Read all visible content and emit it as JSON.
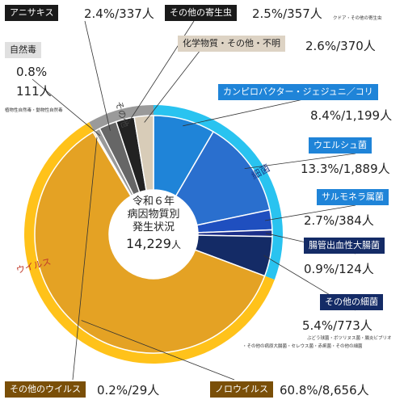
{
  "chart_data": {
    "type": "pie",
    "title": "令和６年\n病因物質別\n発生状況",
    "center_title_lines": [
      "令和６年",
      "病因物質別",
      "発生状況"
    ],
    "total": "14,229",
    "total_unit": "人",
    "slices": [
      {
        "name": "カンピロバクター・ジェジュニ／コリ",
        "percent": 8.4,
        "count": 1199,
        "label": "8.4%/1,199人",
        "group": "細菌",
        "color": "#1f84d8"
      },
      {
        "name": "ウエルシュ菌",
        "percent": 13.3,
        "count": 1889,
        "label": "13.3%/1,889人",
        "group": "細菌",
        "color": "#2a6fce"
      },
      {
        "name": "サルモネラ属菌",
        "percent": 2.7,
        "count": 384,
        "label": "2.7%/384人",
        "group": "細菌",
        "color": "#1f4fbf"
      },
      {
        "name": "腸管出血性大腸菌",
        "percent": 0.9,
        "count": 124,
        "label": "0.9%/124人",
        "group": "細菌",
        "color": "#1c2f8a"
      },
      {
        "name": "その他の細菌",
        "percent": 5.4,
        "count": 773,
        "label": "5.4%/773人",
        "group": "細菌",
        "color": "#142b66"
      },
      {
        "name": "ノロウイルス",
        "percent": 60.8,
        "count": 8656,
        "label": "60.8%/8,656人",
        "group": "ウイルス",
        "color": "#e4a224"
      },
      {
        "name": "その他のウイルス",
        "percent": 0.2,
        "count": 29,
        "label": "0.2%/29人",
        "group": "ウイルス",
        "color": "#c98b12"
      },
      {
        "name": "自然毒",
        "percent": 0.8,
        "count": 111,
        "label": "0.8%/111人",
        "group": "その他",
        "color": "#999999"
      },
      {
        "name": "アニサキス",
        "percent": 2.4,
        "count": 337,
        "label": "2.4%/337人",
        "group": "その他",
        "color": "#666666"
      },
      {
        "name": "その他の寄生虫",
        "percent": 2.5,
        "count": 357,
        "label": "2.5%/357人",
        "group": "その他",
        "color": "#222222"
      },
      {
        "name": "化学物質・その他・不明",
        "percent": 2.6,
        "count": 370,
        "label": "2.6%/370人",
        "group": "その他",
        "color": "#d8ccb8"
      }
    ],
    "groups": [
      {
        "name": "細菌",
        "color": "#29c3f0"
      },
      {
        "name": "ウイルス",
        "color": "#ffc21a"
      },
      {
        "name": "その他",
        "color": "#9a9a9a"
      }
    ]
  },
  "labels": {
    "anisakis_tag": "アニサキス",
    "anisakis_val": "2.4%/337人",
    "parasite_tag": "その他の寄生虫",
    "parasite_val": "2.5%/357人",
    "parasite_note": "クドア・その他の寄生虫",
    "natural_tag": "自然毒",
    "natural_pct": "0.8%",
    "natural_cnt": "111人",
    "natural_note": "植物性自然毒・動物性自然毒",
    "chemical_tag": "化学物質・その他・不明",
    "chemical_val": "2.6%/370人",
    "campy_tag": "カンピロバクター・ジェジュニ／コリ",
    "campy_val": "8.4%/1,199人",
    "welchii_tag": "ウエルシュ菌",
    "welchii_val": "13.3%/1,889人",
    "salmonella_tag": "サルモネラ属菌",
    "salmonella_val": "2.7%/384人",
    "ehec_tag": "腸管出血性大腸菌",
    "ehec_val": "0.9%/124人",
    "otherbac_tag": "その他の細菌",
    "otherbac_val": "5.4%/773人",
    "otherbac_note1": "ぶどう球菌・ボツリヌス菌・腸炎ビブリオ",
    "otherbac_note2": "・その他の病原大腸菌・セレウス菌・赤痢菌・その他の細菌",
    "othervirus_tag": "その他のウイルス",
    "othervirus_val": "0.2%/29人",
    "noro_tag": "ノロウイルス",
    "noro_val": "60.8%/8,656人",
    "ring_bacteria": "細菌",
    "ring_virus": "ウイルス",
    "ring_other": "その他"
  }
}
